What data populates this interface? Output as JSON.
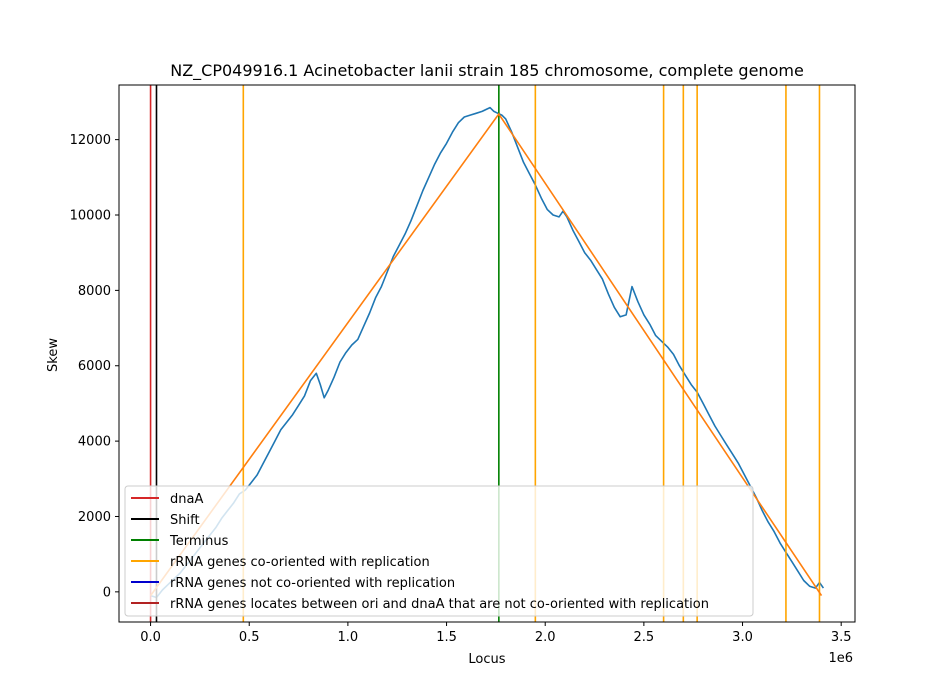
{
  "chart_data": {
    "type": "line",
    "title": "NZ_CP049916.1 Acinetobacter lanii strain 185 chromosome, complete genome",
    "xlabel": "Locus",
    "ylabel": "Skew",
    "x_offset_label": "1e6",
    "xlim": [
      -160000,
      3570000
    ],
    "ylim": [
      -800,
      13450
    ],
    "x_ticks": [
      0,
      500000,
      1000000,
      1500000,
      2000000,
      2500000,
      3000000,
      3500000
    ],
    "x_tick_labels": [
      "0.0",
      "0.5",
      "1.0",
      "1.5",
      "2.0",
      "2.5",
      "3.0",
      "3.5"
    ],
    "y_ticks": [
      0,
      2000,
      4000,
      6000,
      8000,
      10000,
      12000
    ],
    "y_tick_labels": [
      "0",
      "2000",
      "4000",
      "6000",
      "8000",
      "10000",
      "12000"
    ],
    "grid": false,
    "legend_position": "lower-left",
    "colors": {
      "skew": "#1f77b4",
      "fit": "#ff7f0e",
      "dnaA": "#d62728",
      "shift": "#000000",
      "terminus": "#008000",
      "rrna_co": "#ffa500",
      "rrna_not_co": "#0000cd",
      "rrna_between": "#b22222"
    },
    "series": [
      {
        "key": "skew",
        "x": [
          0,
          30000,
          60000,
          90000,
          120000,
          150000,
          180000,
          210000,
          240000,
          270000,
          300000,
          330000,
          360000,
          390000,
          420000,
          450000,
          480000,
          510000,
          540000,
          570000,
          600000,
          630000,
          660000,
          690000,
          720000,
          750000,
          780000,
          810000,
          840000,
          860000,
          880000,
          900000,
          930000,
          960000,
          990000,
          1020000,
          1050000,
          1080000,
          1110000,
          1140000,
          1170000,
          1200000,
          1230000,
          1260000,
          1290000,
          1320000,
          1350000,
          1380000,
          1410000,
          1440000,
          1470000,
          1500000,
          1530000,
          1560000,
          1590000,
          1620000,
          1650000,
          1680000,
          1700000,
          1720000,
          1740000,
          1760000,
          1780000,
          1800000,
          1830000,
          1860000,
          1890000,
          1920000,
          1950000,
          1980000,
          2010000,
          2040000,
          2070000,
          2090000,
          2110000,
          2140000,
          2170000,
          2200000,
          2230000,
          2260000,
          2290000,
          2320000,
          2350000,
          2380000,
          2410000,
          2440000,
          2470000,
          2500000,
          2530000,
          2560000,
          2590000,
          2620000,
          2650000,
          2680000,
          2710000,
          2740000,
          2770000,
          2800000,
          2830000,
          2860000,
          2890000,
          2920000,
          2950000,
          2980000,
          3010000,
          3040000,
          3070000,
          3100000,
          3130000,
          3160000,
          3190000,
          3220000,
          3250000,
          3280000,
          3310000,
          3340000,
          3370000,
          3390000,
          3410000
        ],
        "values": [
          -100,
          -150,
          50,
          200,
          350,
          500,
          700,
          900,
          1100,
          1300,
          1500,
          1700,
          1950,
          2150,
          2350,
          2600,
          2700,
          2900,
          3100,
          3400,
          3700,
          4000,
          4300,
          4500,
          4700,
          4950,
          5200,
          5600,
          5800,
          5500,
          5150,
          5350,
          5700,
          6100,
          6350,
          6550,
          6700,
          7050,
          7400,
          7800,
          8100,
          8500,
          8900,
          9200,
          9500,
          9850,
          10250,
          10650,
          11000,
          11350,
          11650,
          11900,
          12200,
          12450,
          12600,
          12650,
          12700,
          12750,
          12800,
          12850,
          12750,
          12700,
          12650,
          12550,
          12200,
          11800,
          11400,
          11100,
          10800,
          10450,
          10150,
          10000,
          9950,
          10100,
          9950,
          9600,
          9300,
          9000,
          8800,
          8550,
          8300,
          7900,
          7550,
          7300,
          7350,
          8100,
          7700,
          7350,
          7100,
          6800,
          6650,
          6500,
          6300,
          6000,
          5750,
          5500,
          5300,
          5000,
          4700,
          4400,
          4150,
          3900,
          3650,
          3400,
          3100,
          2800,
          2500,
          2150,
          1850,
          1600,
          1300,
          1050,
          800,
          550,
          300,
          150,
          100,
          250,
          100
        ]
      },
      {
        "key": "fit",
        "x": [
          0,
          1765000,
          3400000
        ],
        "values": [
          -100,
          12680,
          -100
        ]
      }
    ],
    "vlines": [
      {
        "key": "dnaA",
        "x": 0
      },
      {
        "key": "shift",
        "x": 30000
      },
      {
        "key": "terminus",
        "x": 1765000
      },
      {
        "key": "rrna_co",
        "x": 470000
      },
      {
        "key": "rrna_co",
        "x": 1950000
      },
      {
        "key": "rrna_co",
        "x": 2600000
      },
      {
        "key": "rrna_co",
        "x": 2700000
      },
      {
        "key": "rrna_co",
        "x": 2770000
      },
      {
        "key": "rrna_co",
        "x": 3220000
      },
      {
        "key": "rrna_co",
        "x": 3390000
      }
    ],
    "legend": [
      {
        "key": "dnaA",
        "label": "dnaA"
      },
      {
        "key": "shift",
        "label": "Shift"
      },
      {
        "key": "terminus",
        "label": "Terminus"
      },
      {
        "key": "rrna_co",
        "label": "rRNA genes co-oriented with replication"
      },
      {
        "key": "rrna_not_co",
        "label": "rRNA genes not co-oriented with replication"
      },
      {
        "key": "rrna_between",
        "label": "rRNA genes locates between ori and dnaA that are not co-oriented with replication"
      }
    ]
  }
}
